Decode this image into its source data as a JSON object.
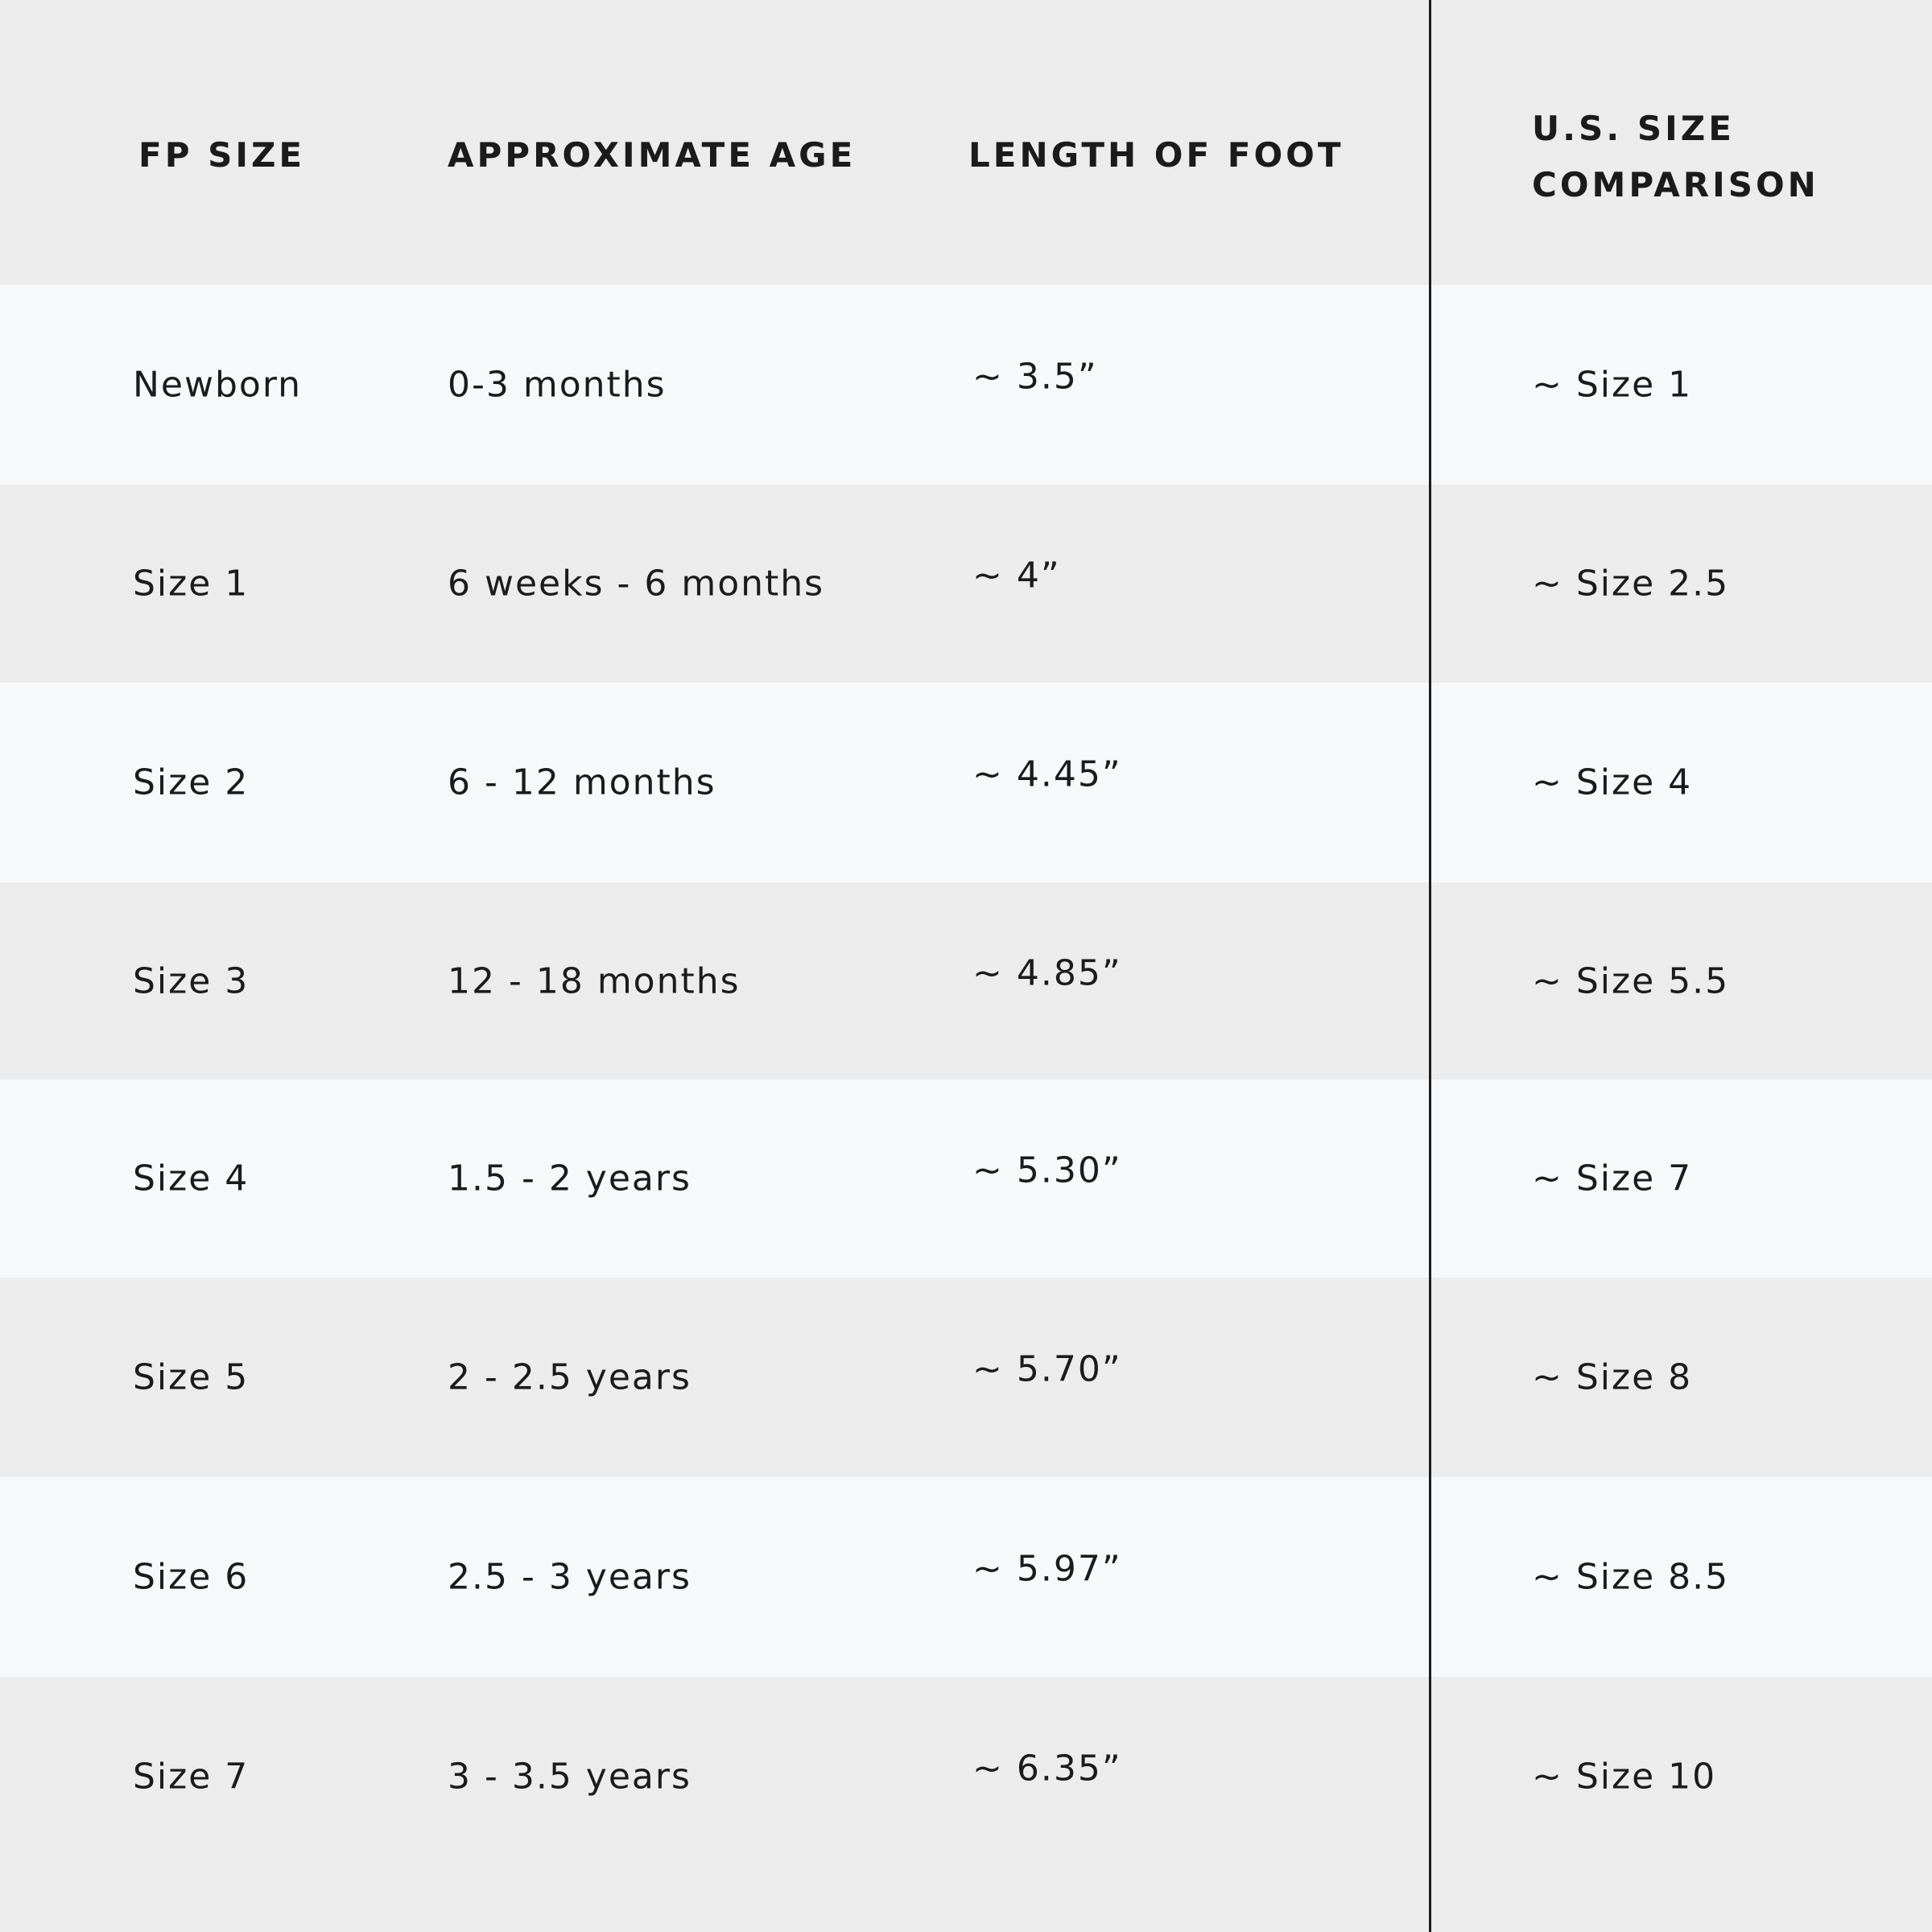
{
  "table": {
    "headers": [
      "FP SIZE",
      "APPROXIMATE AGE",
      "LENGTH OF FOOT",
      "U.S. SIZE COMPARISON"
    ],
    "header_lines_col4": [
      "U.S. SIZE",
      "COMPARISON"
    ],
    "rows": [
      [
        "Newborn",
        "0-3 months",
        "~ 3.5”",
        "~ Size 1"
      ],
      [
        "Size 1",
        "6 weeks - 6 months",
        "~ 4”",
        "~ Size 2.5"
      ],
      [
        "Size 2",
        "6 - 12 months",
        "~ 4.45”",
        "~ Size 4"
      ],
      [
        "Size 3",
        "12 - 18 months",
        "~ 4.85”",
        "~ Size 5.5"
      ],
      [
        "Size 4",
        "1.5 - 2 years",
        "~ 5.30”",
        "~ Size 7"
      ],
      [
        "Size 5",
        "2 - 2.5 years",
        "~ 5.70”",
        "~ Size 8"
      ],
      [
        "Size 6",
        "2.5 - 3 years",
        "~ 5.97”",
        "~ Size 8.5"
      ],
      [
        "Size 7",
        "3 - 3.5 years",
        "~ 6.35”",
        "~ Size 10"
      ]
    ]
  },
  "colors": {
    "header_bg": "#ececec",
    "row_light": "#f7f8fa",
    "row_dark": "#ececec",
    "text": "#1b1b1b"
  }
}
